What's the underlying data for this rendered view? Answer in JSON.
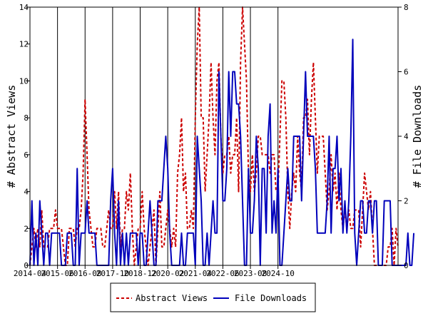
{
  "chart_data": {
    "type": "line",
    "ylabel_left": "# Abstract Views",
    "ylabel_right": "# File Downloads",
    "xlabel": "",
    "x_tick_labels": [
      "2014-04",
      "2015-06",
      "2016-08",
      "2017-10",
      "2018-12",
      "2020-02",
      "2021-04",
      "2022-06",
      "2023-08",
      "2024-10"
    ],
    "ylim_left": [
      0,
      14
    ],
    "ylim_right": [
      0,
      8
    ],
    "y_ticks_left": [
      0,
      2,
      4,
      6,
      8,
      10,
      12,
      14
    ],
    "y_ticks_right": [
      0,
      2,
      4,
      6,
      8
    ],
    "grid": "vertical",
    "legend_position": "bottom-center",
    "x_start": "2014-04",
    "series": [
      {
        "name": "Abstract Views",
        "axis": "left",
        "color": "#cc0000",
        "style": "dashed",
        "values": [
          0,
          1,
          2,
          1,
          2,
          1,
          3,
          1,
          1,
          1,
          2,
          2,
          2,
          3,
          2,
          2,
          2,
          1,
          0,
          0,
          2,
          2,
          2,
          1,
          2,
          2,
          3,
          5,
          9,
          6,
          3,
          2,
          1,
          1,
          2,
          2,
          2,
          1,
          1,
          2,
          3,
          2,
          2,
          4,
          2,
          4,
          1,
          2,
          2,
          4,
          3,
          5,
          2,
          0,
          1,
          2,
          2,
          4,
          2,
          1,
          0,
          1,
          2,
          3,
          0,
          2,
          4,
          1,
          1,
          2,
          3,
          2,
          1,
          2,
          1,
          5,
          6,
          8,
          4,
          5,
          2,
          2,
          3,
          2,
          8,
          12,
          15,
          8,
          8,
          4,
          6,
          8,
          11,
          8,
          6,
          10,
          11,
          7,
          5,
          6,
          6,
          7,
          5,
          6,
          6,
          8,
          4,
          11,
          14,
          12,
          10,
          5,
          4,
          6,
          4,
          5,
          7,
          7,
          6,
          6,
          6,
          6,
          5,
          6,
          6,
          4,
          4,
          7,
          10,
          10,
          8,
          4,
          2,
          4,
          5,
          4,
          7,
          5,
          4,
          8,
          8,
          9,
          6,
          9,
          11,
          8,
          5,
          7,
          7,
          7,
          5,
          3,
          4,
          6,
          4,
          5,
          3,
          5,
          3,
          2,
          3,
          2,
          3,
          2,
          2,
          3,
          3,
          3,
          1,
          3,
          5,
          4,
          3,
          4,
          2,
          0,
          0,
          0,
          0,
          0,
          0,
          0,
          1,
          1,
          2,
          0,
          2,
          1
        ]
      },
      {
        "name": "File Downloads",
        "axis": "right",
        "color": "#0000bb",
        "style": "solid",
        "values": [
          0,
          2,
          0,
          1,
          0,
          2,
          1,
          0,
          1,
          1,
          0,
          1,
          1,
          1,
          1,
          1,
          0,
          0,
          0,
          1,
          1,
          1,
          0,
          0,
          3,
          0,
          1,
          1,
          1,
          2,
          1,
          1,
          1,
          1,
          0,
          0,
          0,
          0,
          0,
          0,
          0,
          2,
          3,
          1,
          0,
          2,
          0,
          1,
          0,
          1,
          0,
          1,
          1,
          1,
          1,
          0,
          1,
          1,
          0,
          0,
          1,
          2,
          1,
          0,
          0,
          2,
          2,
          2,
          3,
          4,
          3,
          1,
          0,
          0,
          0,
          0,
          0,
          1,
          0,
          0,
          1,
          1,
          1,
          1,
          0,
          4,
          3,
          2,
          0,
          0,
          1,
          0,
          1,
          2,
          1,
          1,
          6,
          4,
          2,
          2,
          3,
          6,
          4,
          6,
          6,
          5,
          5,
          4,
          2,
          0,
          0,
          3,
          1,
          1,
          2,
          4,
          3,
          0,
          3,
          3,
          1,
          4,
          5,
          1,
          2,
          1,
          3,
          0,
          0,
          1,
          2,
          3,
          2,
          2,
          4,
          4,
          4,
          4,
          2,
          4,
          6,
          4,
          4,
          4,
          4,
          3,
          1,
          1,
          1,
          1,
          1,
          2,
          4,
          1,
          3,
          3,
          4,
          2,
          3,
          1,
          2,
          1,
          2,
          4,
          7,
          1,
          0,
          1,
          2,
          2,
          1,
          1,
          2,
          2,
          1,
          2,
          2,
          0,
          0,
          0,
          2,
          2,
          2,
          2,
          0,
          0,
          0,
          0,
          0,
          0,
          0,
          0,
          1,
          0,
          0,
          1
        ]
      }
    ]
  }
}
